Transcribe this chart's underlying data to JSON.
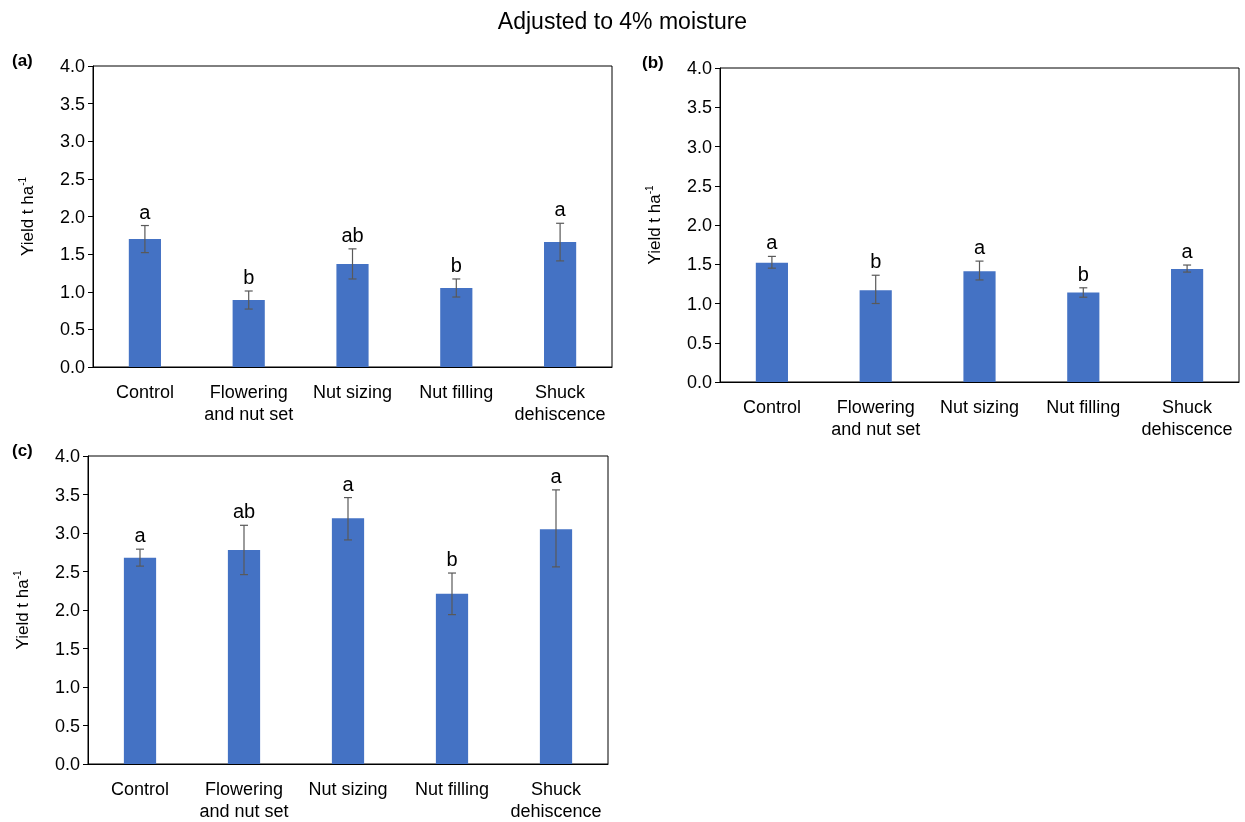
{
  "chart_data": [
    {
      "type": "bar",
      "title": "Adjusted to 4% moisture",
      "subtitle": "(a)",
      "ylabel": "Yield t ha$^{-1}$",
      "categories": [
        "Control",
        "Flowering\nand nut set",
        "Nut sizing",
        "Nut filling",
        "Shuck\ndehiscence"
      ],
      "values": [
        1.7,
        0.89,
        1.37,
        1.05,
        1.66
      ],
      "color": "#4472c4",
      "errors": [
        [
          1.52,
          1.88
        ],
        [
          0.77,
          1.01
        ],
        [
          1.17,
          1.57
        ],
        [
          0.93,
          1.17
        ],
        [
          1.41,
          1.91
        ]
      ],
      "annotations": [
        {
          "text": "a",
          "x": "Control",
          "y": 1.88
        },
        {
          "text": "b",
          "x": "Flowering\nand nut set",
          "y": 1.01
        },
        {
          "text": "ab",
          "x": "Nut sizing",
          "y": 1.57
        },
        {
          "text": "b",
          "x": "Nut filling",
          "y": 1.17
        },
        {
          "text": "a",
          "x": "Shuck\ndehiscence",
          "y": 1.91
        }
      ],
      "ylim": [
        0,
        4
      ],
      "yticks": [
        {
          "value": 0,
          "label": "0.0"
        },
        0.5,
        {
          "value": 1,
          "label": "1.0"
        },
        1.5,
        {
          "value": 2,
          "label": "2.0"
        },
        2.5,
        {
          "value": 3,
          "label": "3.0"
        },
        3.5,
        {
          "value": 4,
          "label": "4.0"
        }
      ]
    },
    {
      "type": "bar",
      "subtitle": "(b)",
      "ylabel": "Yield t ha$^{-1}$",
      "categories": [
        "Control",
        "Flowering\nand nut set",
        "Nut sizing",
        "Nut filling",
        "Shuck\ndehiscence"
      ],
      "values": [
        1.52,
        1.17,
        1.41,
        1.14,
        1.44
      ],
      "color": "#4472c4",
      "errors": [
        [
          1.45,
          1.6
        ],
        [
          1.0,
          1.36
        ],
        [
          1.3,
          1.54
        ],
        [
          1.08,
          1.2
        ],
        [
          1.4,
          1.49
        ]
      ],
      "annotations": [
        {
          "text": "a",
          "x": "Control",
          "y": 1.6
        },
        {
          "text": "b",
          "x": "Flowering\nand nut set",
          "y": 1.36
        },
        {
          "text": "a",
          "x": "Nut sizing",
          "y": 1.54
        },
        {
          "text": "b",
          "x": "Nut filling",
          "y": 1.2
        },
        {
          "text": "a",
          "x": "Shuck\ndehiscence",
          "y": 1.49
        }
      ],
      "ylim": [
        0,
        4
      ],
      "yticks": [
        {
          "value": 0,
          "label": "0.0"
        },
        0.5,
        {
          "value": 1,
          "label": "1.0"
        },
        1.5,
        {
          "value": 2,
          "label": "2.0"
        },
        2.5,
        {
          "value": 3,
          "label": "3.0"
        },
        3.5,
        {
          "value": 4,
          "label": "4.0"
        }
      ]
    },
    {
      "type": "bar",
      "subtitle": "(c)",
      "ylabel": "Yield t ha$^{-1}$",
      "categories": [
        "Control",
        "Flowering\nand nut set",
        "Nut sizing",
        "Nut filling",
        "Shuck\ndehiscence"
      ],
      "values": [
        2.68,
        2.78,
        3.19,
        2.21,
        3.05
      ],
      "color": "#4472c4",
      "errors": [
        [
          2.57,
          2.79
        ],
        [
          2.46,
          3.1
        ],
        [
          2.91,
          3.46
        ],
        [
          1.94,
          2.48
        ],
        [
          2.56,
          3.56
        ]
      ],
      "annotations": [
        {
          "text": "a",
          "x": "Control",
          "y": 2.79
        },
        {
          "text": "ab",
          "x": "Flowering\nand nut set",
          "y": 3.1
        },
        {
          "text": "a",
          "x": "Nut sizing",
          "y": 3.46
        },
        {
          "text": "b",
          "x": "Nut filling",
          "y": 2.48
        },
        {
          "text": "a",
          "x": "Shuck\ndehiscence",
          "y": 3.56
        }
      ],
      "ylim": [
        0,
        4
      ],
      "yticks": [
        {
          "value": 0,
          "label": "0.0"
        },
        0.5,
        {
          "value": 1,
          "label": "1.0"
        },
        1.5,
        {
          "value": 2,
          "label": "2.0"
        },
        2.5,
        {
          "value": 3,
          "label": "3.0"
        },
        3.5,
        {
          "value": 4,
          "label": "4.0"
        }
      ]
    }
  ]
}
